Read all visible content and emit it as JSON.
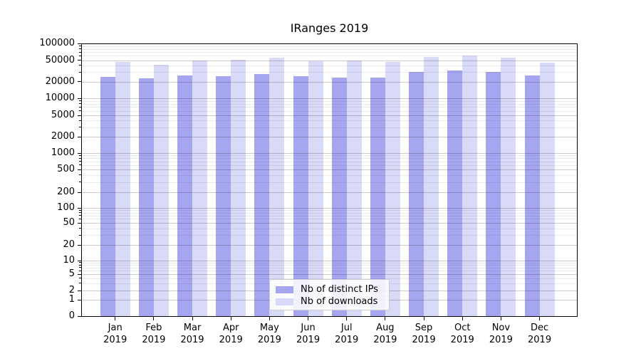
{
  "chart_data": {
    "type": "bar",
    "title": "IRanges 2019",
    "categories": [
      "Jan 2019",
      "Feb 2019",
      "Mar 2019",
      "Apr 2019",
      "May 2019",
      "Jun 2019",
      "Jul 2019",
      "Aug 2019",
      "Sep 2019",
      "Oct 2019",
      "Nov 2019",
      "Dec 2019"
    ],
    "series": [
      {
        "name": "Nb of distinct IPs",
        "color": "#a6a6f0",
        "values": [
          24500,
          23000,
          26000,
          25000,
          28000,
          25500,
          24000,
          24000,
          30000,
          32500,
          30500,
          26000
        ]
      },
      {
        "name": "Nb of downloads",
        "color": "#d9d9f8",
        "values": [
          47000,
          41000,
          50000,
          51000,
          56000,
          48500,
          49500,
          46500,
          57000,
          61000,
          56000,
          45500
        ]
      }
    ],
    "yscale": "symlog",
    "yticks": [
      0,
      1,
      2,
      5,
      10,
      20,
      50,
      100,
      200,
      500,
      1000,
      2000,
      5000,
      10000,
      20000,
      50000,
      100000
    ],
    "ylim": [
      0,
      100000
    ],
    "grid": "major and log minor gridlines, drawn over translucent bars",
    "legend_position": "lower center",
    "xlabel": "",
    "ylabel": ""
  }
}
